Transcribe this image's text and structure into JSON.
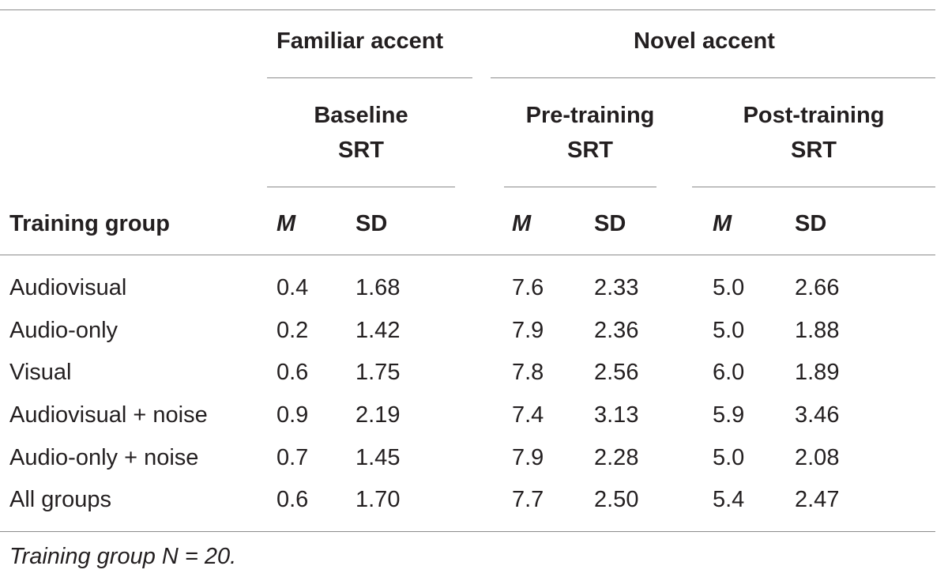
{
  "table": {
    "group_headers": {
      "familiar": "Familiar accent",
      "novel": "Novel accent"
    },
    "sub_headers": {
      "baseline": [
        "Baseline",
        "SRT"
      ],
      "pre": [
        "Pre-training",
        "SRT"
      ],
      "post": [
        "Post-training",
        "SRT"
      ]
    },
    "columns": {
      "group": "Training group",
      "m": "M",
      "sd": "SD"
    },
    "rows": [
      {
        "group": "Audiovisual",
        "base_m": "0.4",
        "base_sd": "1.68",
        "pre_m": "7.6",
        "pre_sd": "2.33",
        "post_m": "5.0",
        "post_sd": "2.66"
      },
      {
        "group": "Audio-only",
        "base_m": "0.2",
        "base_sd": "1.42",
        "pre_m": "7.9",
        "pre_sd": "2.36",
        "post_m": "5.0",
        "post_sd": "1.88"
      },
      {
        "group": "Visual",
        "base_m": "0.6",
        "base_sd": "1.75",
        "pre_m": "7.8",
        "pre_sd": "2.56",
        "post_m": "6.0",
        "post_sd": "1.89"
      },
      {
        "group": "Audiovisual + noise",
        "base_m": "0.9",
        "base_sd": "2.19",
        "pre_m": "7.4",
        "pre_sd": "3.13",
        "post_m": "5.9",
        "post_sd": "3.46"
      },
      {
        "group": "Audio-only + noise",
        "base_m": "0.7",
        "base_sd": "1.45",
        "pre_m": "7.9",
        "pre_sd": "2.28",
        "post_m": "5.0",
        "post_sd": "2.08"
      },
      {
        "group": "All groups",
        "base_m": "0.6",
        "base_sd": "1.70",
        "pre_m": "7.7",
        "pre_sd": "2.50",
        "post_m": "5.4",
        "post_sd": "2.47"
      }
    ],
    "footnote": "Training group N = 20."
  }
}
